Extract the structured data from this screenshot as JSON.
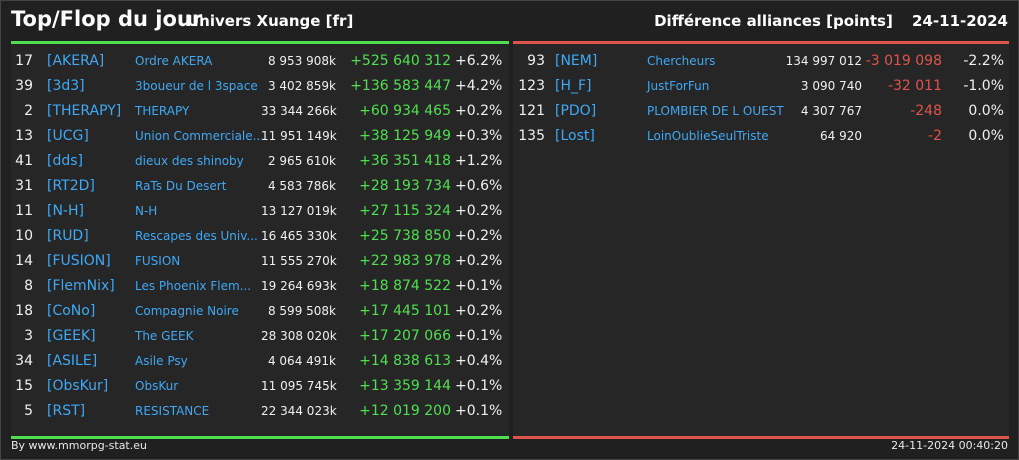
{
  "header": {
    "title": "Top/Flop du jour",
    "universe": "Univers Xuange [fr]",
    "section": "Différence alliances [points]",
    "date": "24-11-2024"
  },
  "top": [
    {
      "rank": "17",
      "tag": "[AKERA]",
      "name": "Ordre AKERA",
      "points": "8 953 908k",
      "diff": "+525 640 312",
      "pct": "+6.2%"
    },
    {
      "rank": "39",
      "tag": "[3d3]",
      "name": "3boueur de l 3space",
      "points": "3 402 859k",
      "diff": "+136 583 447",
      "pct": "+4.2%"
    },
    {
      "rank": "2",
      "tag": "[THERAPY]",
      "name": "THERAPY",
      "points": "33 344 266k",
      "diff": "+60 934 465",
      "pct": "+0.2%"
    },
    {
      "rank": "13",
      "tag": "[UCG]",
      "name": "Union Commerciale...",
      "points": "11 951 149k",
      "diff": "+38 125 949",
      "pct": "+0.3%"
    },
    {
      "rank": "41",
      "tag": "[dds]",
      "name": "dieux des shinoby",
      "points": "2 965 610k",
      "diff": "+36 351 418",
      "pct": "+1.2%"
    },
    {
      "rank": "31",
      "tag": "[RT2D]",
      "name": "RaTs Du Desert",
      "points": "4 583 786k",
      "diff": "+28 193 734",
      "pct": "+0.6%"
    },
    {
      "rank": "11",
      "tag": "[N-H]",
      "name": "N-H",
      "points": "13 127 019k",
      "diff": "+27 115 324",
      "pct": "+0.2%"
    },
    {
      "rank": "10",
      "tag": "[RUD]",
      "name": "Rescapes des Univ...",
      "points": "16 465 330k",
      "diff": "+25 738 850",
      "pct": "+0.2%"
    },
    {
      "rank": "14",
      "tag": "[FUSION]",
      "name": "FUSION",
      "points": "11 555 270k",
      "diff": "+22 983 978",
      "pct": "+0.2%"
    },
    {
      "rank": "8",
      "tag": "[FlemNix]",
      "name": "Les Phoenix Flem...",
      "points": "19 264 693k",
      "diff": "+18 874 522",
      "pct": "+0.1%"
    },
    {
      "rank": "18",
      "tag": "[CoNo]",
      "name": "Compagnie Noire",
      "points": "8 599 508k",
      "diff": "+17 445 101",
      "pct": "+0.2%"
    },
    {
      "rank": "3",
      "tag": "[GEEK]",
      "name": "The GEEK",
      "points": "28 308 020k",
      "diff": "+17 207 066",
      "pct": "+0.1%"
    },
    {
      "rank": "34",
      "tag": "[ASILE]",
      "name": "Asile Psy",
      "points": "4 064 491k",
      "diff": "+14 838 613",
      "pct": "+0.4%"
    },
    {
      "rank": "15",
      "tag": "[ObsKur]",
      "name": "ObsKur",
      "points": "11 095 745k",
      "diff": "+13 359 144",
      "pct": "+0.1%"
    },
    {
      "rank": "5",
      "tag": "[RST]",
      "name": "RESISTANCE",
      "points": "22 344 023k",
      "diff": "+12 019 200",
      "pct": "+0.1%"
    }
  ],
  "flop": [
    {
      "rank": "93",
      "tag": "[NEM]",
      "name": "Chercheurs",
      "points": "134 997 012",
      "diff": "-3 019 098",
      "pct": "-2.2%"
    },
    {
      "rank": "123",
      "tag": "[H_F]",
      "name": "JustForFun",
      "points": "3 090 740",
      "diff": "-32 011",
      "pct": "-1.0%"
    },
    {
      "rank": "121",
      "tag": "[PDO]",
      "name": "PLOMBIER DE L OUEST",
      "points": "4 307 767",
      "diff": "-248",
      "pct": "0.0%"
    },
    {
      "rank": "135",
      "tag": "[Lost]",
      "name": "LoinOublieSeulTriste",
      "points": "64 920",
      "diff": "-2",
      "pct": "0.0%"
    }
  ],
  "footer": {
    "credit": "By www.mmorpg-stat.eu",
    "timestamp": "24-11-2024 00:40:20"
  },
  "colors": {
    "positive": "#4fe04f",
    "negative": "#e0544b",
    "link": "#3fa9f5"
  }
}
